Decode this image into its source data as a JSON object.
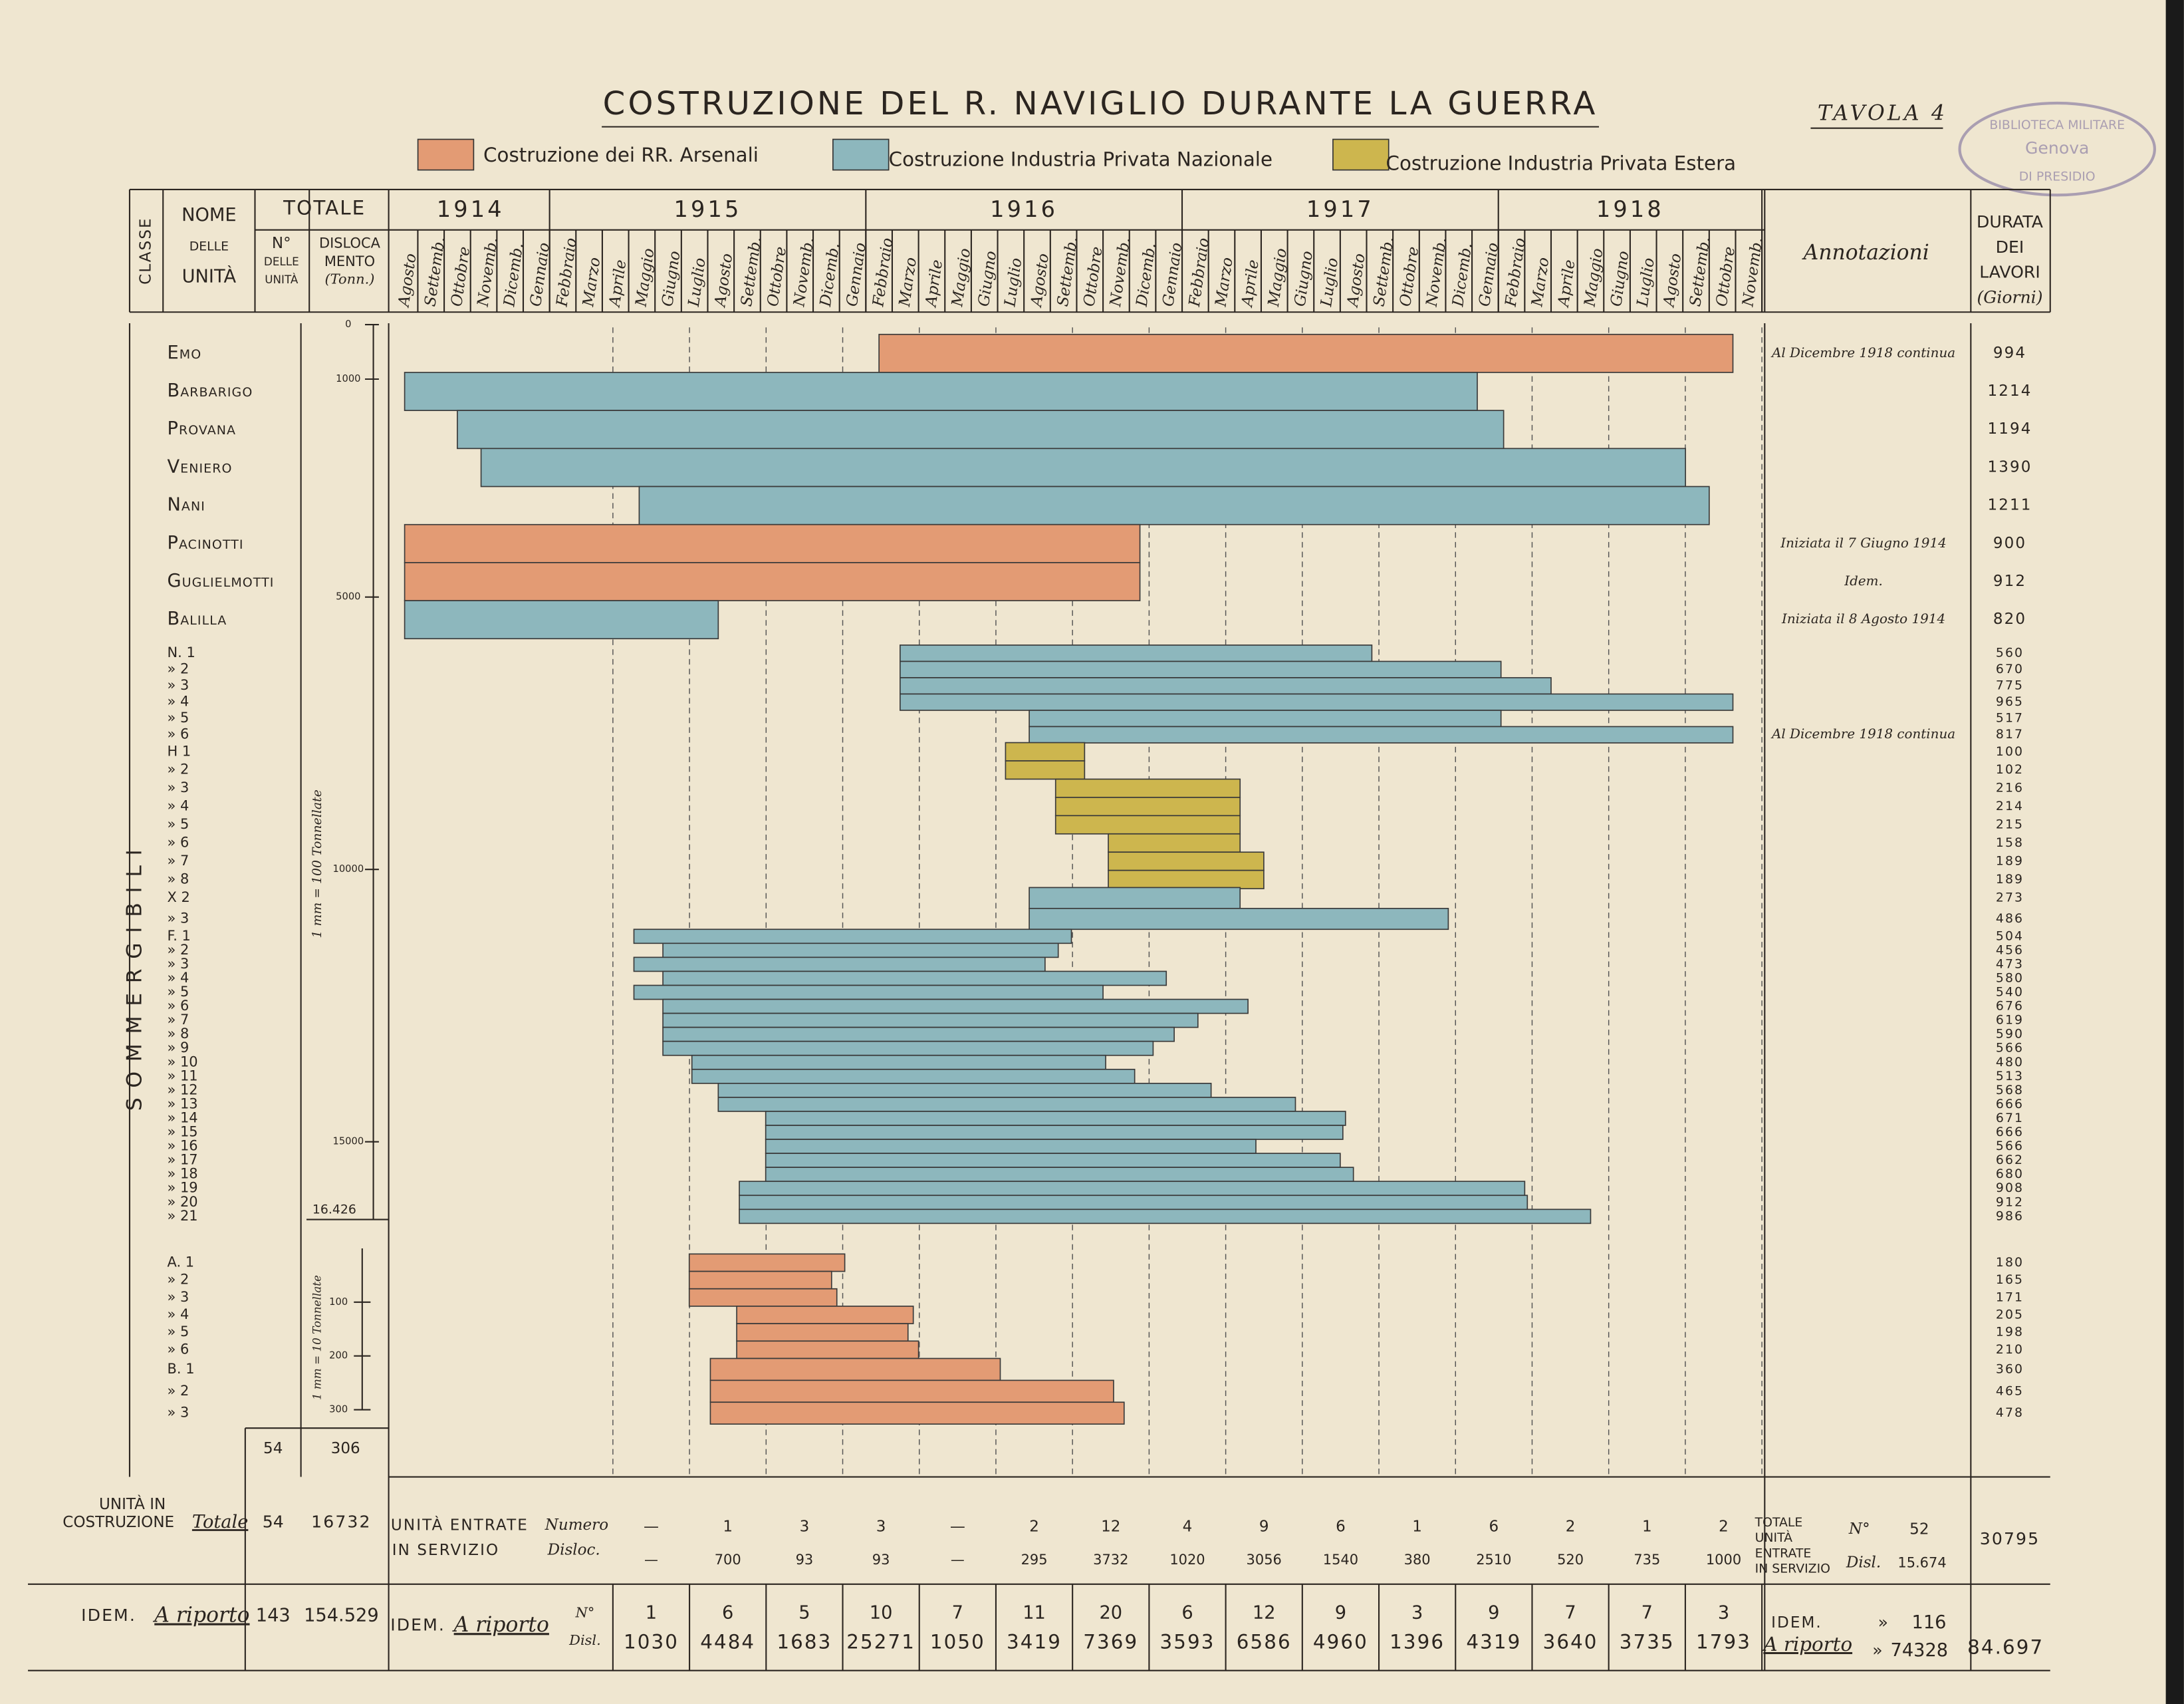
{
  "chart_data": {
    "type": "gantt",
    "title": "COSTRUZIONE DEL R. NAVIGLIO DURANTE LA GUERRA",
    "plate": "Tavola 4",
    "stamp": [
      "BIBLIOTECA MILITARE",
      "Genova",
      "DI PRESIDIO"
    ],
    "legend": [
      {
        "name": "Costruzione dei RR. Arsenali",
        "color": "#e39b74"
      },
      {
        "name": "Costruzione Industria Privata Nazionale",
        "color": "#8db7bd"
      },
      {
        "name": "Costruzione Industria Privata Estera",
        "color": "#cdb64e"
      }
    ],
    "headers": {
      "classe": "CLASSE",
      "nome": [
        "NOME",
        "DELLE",
        "UNITÀ"
      ],
      "totale": "TOTALE",
      "numero": [
        "N°",
        "DELLE",
        "UNITÀ"
      ],
      "disloc": [
        "DISLOCA",
        "MENTO",
        "(Tonn.)"
      ],
      "annotazioni": "Annotazioni",
      "durata": [
        "DURATA",
        "DEI",
        "LAVORI",
        "(Giorni)"
      ]
    },
    "years": [
      "1914",
      "1915",
      "1916",
      "1917",
      "1918"
    ],
    "months": [
      "Agosto",
      "Settemb.",
      "Ottobre",
      "Novemb.",
      "Dicemb.",
      "Gennaio",
      "Febbraio",
      "Marzo",
      "Aprile",
      "Maggio",
      "Giugno",
      "Luglio",
      "Agosto",
      "Settemb.",
      "Ottobre",
      "Novemb.",
      "Dicemb.",
      "Gennaio",
      "Febbraio",
      "Marzo",
      "Aprile",
      "Maggio",
      "Giugno",
      "Luglio",
      "Agosto",
      "Settemb.",
      "Ottobre",
      "Novemb.",
      "Dicemb.",
      "Gennaio",
      "Febbraio",
      "Marzo",
      "Aprile",
      "Maggio",
      "Giugno",
      "Luglio",
      "Agosto",
      "Settemb.",
      "Ottobre",
      "Novemb.",
      "Dicemb.",
      "Gennaio",
      "Febbraio",
      "Marzo",
      "Aprile",
      "Maggio",
      "Giugno",
      "Luglio",
      "Agosto",
      "Settemb.",
      "Ottobre",
      "Novemb."
    ],
    "xlim": [
      0,
      52
    ],
    "class_label": "SOMMERGIBILI",
    "rows": [
      {
        "label": "Emo",
        "color": "#e39b74",
        "start": 18.5,
        "end": 50.9,
        "duration": 994,
        "annotation": "Al Dicembre 1918 continua"
      },
      {
        "label": "Barbarigo",
        "color": "#8db7bd",
        "start": 0.5,
        "end": 41.2,
        "duration": 1214
      },
      {
        "label": "Provana",
        "color": "#8db7bd",
        "start": 2.5,
        "end": 42.2,
        "duration": 1194
      },
      {
        "label": "Veniero",
        "color": "#8db7bd",
        "start": 3.4,
        "end": 49.1,
        "duration": 1390
      },
      {
        "label": "Nani",
        "color": "#8db7bd",
        "start": 9.4,
        "end": 50.0,
        "duration": 1211
      },
      {
        "label": "Pacinotti",
        "color": "#e39b74",
        "start": 0.5,
        "end": 28.4,
        "duration": 900,
        "annotation": "Iniziata il 7 Giugno 1914"
      },
      {
        "label": "Guglielmotti",
        "color": "#e39b74",
        "start": 0.5,
        "end": 28.4,
        "duration": 912,
        "annotation": "Idem."
      },
      {
        "label": "Balilla",
        "color": "#8db7bd",
        "start": 0.5,
        "end": 12.4,
        "duration": 820,
        "annotation": "Iniziata il 8 Agosto 1914"
      },
      {
        "label": "N. 1",
        "color": "#8db7bd",
        "start": 19.3,
        "end": 37.2,
        "duration": 560
      },
      {
        "label": "» 2",
        "color": "#8db7bd",
        "start": 19.3,
        "end": 42.1,
        "duration": 670
      },
      {
        "label": "» 3",
        "color": "#8db7bd",
        "start": 19.3,
        "end": 44.0,
        "duration": 775
      },
      {
        "label": "» 4",
        "color": "#8db7bd",
        "start": 19.3,
        "end": 50.9,
        "duration": 965
      },
      {
        "label": "» 5",
        "color": "#8db7bd",
        "start": 24.2,
        "end": 42.1,
        "duration": 517
      },
      {
        "label": "» 6",
        "color": "#8db7bd",
        "start": 24.2,
        "end": 50.9,
        "duration": 817,
        "annotation": "Al Dicembre 1918 continua"
      },
      {
        "label": "H 1",
        "color": "#cdb64e",
        "start": 23.3,
        "end": 26.3,
        "duration": 100
      },
      {
        "label": "» 2",
        "color": "#cdb64e",
        "start": 23.3,
        "end": 26.3,
        "duration": 102
      },
      {
        "label": "» 3",
        "color": "#cdb64e",
        "start": 25.2,
        "end": 32.2,
        "duration": 216
      },
      {
        "label": "» 4",
        "color": "#cdb64e",
        "start": 25.2,
        "end": 32.2,
        "duration": 214
      },
      {
        "label": "» 5",
        "color": "#cdb64e",
        "start": 25.2,
        "end": 32.2,
        "duration": 215
      },
      {
        "label": "» 6",
        "color": "#cdb64e",
        "start": 27.2,
        "end": 32.2,
        "duration": 158
      },
      {
        "label": "» 7",
        "color": "#cdb64e",
        "start": 27.2,
        "end": 33.1,
        "duration": 189
      },
      {
        "label": "» 8",
        "color": "#cdb64e",
        "start": 27.2,
        "end": 33.1,
        "duration": 189
      },
      {
        "label": "X 2",
        "color": "#8db7bd",
        "start": 24.2,
        "end": 32.2,
        "duration": 273
      },
      {
        "label": "» 3",
        "color": "#8db7bd",
        "start": 24.2,
        "end": 40.1,
        "duration": 486
      },
      {
        "label": "F. 1",
        "color": "#8db7bd",
        "start": 9.2,
        "end": 25.8,
        "duration": 504
      },
      {
        "label": "» 2",
        "color": "#8db7bd",
        "start": 10.3,
        "end": 25.3,
        "duration": 456
      },
      {
        "label": "» 3",
        "color": "#8db7bd",
        "start": 9.2,
        "end": 24.8,
        "duration": 473
      },
      {
        "label": "» 4",
        "color": "#8db7bd",
        "start": 10.3,
        "end": 29.4,
        "duration": 580
      },
      {
        "label": "» 5",
        "color": "#8db7bd",
        "start": 9.2,
        "end": 27.0,
        "duration": 540
      },
      {
        "label": "» 6",
        "color": "#8db7bd",
        "start": 10.3,
        "end": 32.5,
        "duration": 676
      },
      {
        "label": "» 7",
        "color": "#8db7bd",
        "start": 10.3,
        "end": 30.6,
        "duration": 619
      },
      {
        "label": "» 8",
        "color": "#8db7bd",
        "start": 10.3,
        "end": 29.7,
        "duration": 590
      },
      {
        "label": "» 9",
        "color": "#8db7bd",
        "start": 10.3,
        "end": 28.9,
        "duration": 566
      },
      {
        "label": "» 10",
        "color": "#8db7bd",
        "start": 11.4,
        "end": 27.1,
        "duration": 480
      },
      {
        "label": "» 11",
        "color": "#8db7bd",
        "start": 11.4,
        "end": 28.2,
        "duration": 513
      },
      {
        "label": "» 12",
        "color": "#8db7bd",
        "start": 12.4,
        "end": 31.1,
        "duration": 568
      },
      {
        "label": "» 13",
        "color": "#8db7bd",
        "start": 12.4,
        "end": 34.3,
        "duration": 666
      },
      {
        "label": "» 14",
        "color": "#8db7bd",
        "start": 14.2,
        "end": 36.2,
        "duration": 671
      },
      {
        "label": "» 15",
        "color": "#8db7bd",
        "start": 14.2,
        "end": 36.1,
        "duration": 666
      },
      {
        "label": "» 16",
        "color": "#8db7bd",
        "start": 14.2,
        "end": 32.8,
        "duration": 566
      },
      {
        "label": "» 17",
        "color": "#8db7bd",
        "start": 14.2,
        "end": 36.0,
        "duration": 662
      },
      {
        "label": "» 18",
        "color": "#8db7bd",
        "start": 14.2,
        "end": 36.5,
        "duration": 680
      },
      {
        "label": "» 19",
        "color": "#8db7bd",
        "start": 13.2,
        "end": 43.0,
        "duration": 908
      },
      {
        "label": "» 20",
        "color": "#8db7bd",
        "start": 13.2,
        "end": 43.1,
        "duration": 912
      },
      {
        "label": "» 21",
        "color": "#8db7bd",
        "start": 13.2,
        "end": 45.5,
        "duration": 986
      },
      {
        "label": "A. 1",
        "color": "#e39b74",
        "start": 11.3,
        "end": 17.2,
        "duration": 180
      },
      {
        "label": "» 2",
        "color": "#e39b74",
        "start": 11.3,
        "end": 16.7,
        "duration": 165
      },
      {
        "label": "» 3",
        "color": "#e39b74",
        "start": 11.3,
        "end": 16.9,
        "duration": 171
      },
      {
        "label": "» 4",
        "color": "#e39b74",
        "start": 13.1,
        "end": 19.8,
        "duration": 205
      },
      {
        "label": "» 5",
        "color": "#e39b74",
        "start": 13.1,
        "end": 19.6,
        "duration": 198
      },
      {
        "label": "» 6",
        "color": "#e39b74",
        "start": 13.1,
        "end": 20.0,
        "duration": 210
      },
      {
        "label": "B. 1",
        "color": "#e39b74",
        "start": 12.1,
        "end": 23.1,
        "duration": 360
      },
      {
        "label": "» 2",
        "color": "#e39b74",
        "start": 12.1,
        "end": 27.4,
        "duration": 465
      },
      {
        "label": "» 3",
        "color": "#e39b74",
        "start": 12.1,
        "end": 27.8,
        "duration": 478
      }
    ],
    "disp_scale": {
      "ticks": [
        0,
        1000,
        5000,
        10000,
        15000
      ],
      "total": {
        "value": 16426,
        "label": "16.426"
      },
      "note": "1 mm = 100 Tonnellate"
    },
    "disp_scale2": {
      "ticks": [
        100,
        200,
        300
      ],
      "note": "1 mm = 10 Tonnellate"
    },
    "sub_totals": {
      "units": 54,
      "displacement": 306
    },
    "construction": {
      "label": [
        "UNITÀ IN",
        "COSTRUZIONE"
      ],
      "total_label": "Totale",
      "units": 54,
      "displacement": 16732
    },
    "service": {
      "label": [
        "UNITÀ ENTRATE",
        "IN SERVIZIO"
      ],
      "number_label": "Numero",
      "disloc_label": "Disloc.",
      "number": [
        "—",
        1,
        3,
        3,
        "—",
        2,
        12,
        4,
        9,
        6,
        1,
        6,
        2,
        1,
        2
      ],
      "disloc": [
        "—",
        700,
        93,
        93,
        "—",
        295,
        3732,
        1020,
        3056,
        1540,
        380,
        2510,
        520,
        735,
        1000
      ],
      "total_label": [
        "TOTALE",
        "UNITÀ",
        "ENTRATE",
        "IN SERVIZIO"
      ],
      "total_number_label": "N°",
      "total_number": 52,
      "total_disloc_label": "Disl.",
      "total_disloc": {
        "value": 15674,
        "label": "15.674"
      },
      "total_days": 30795
    },
    "carried": {
      "idem": "IDEM.",
      "riporto": "A riporto",
      "units": 143,
      "displacement": {
        "value": 154529,
        "label": "154.529"
      },
      "n_label": "N°",
      "d_label": "Disl.",
      "number": [
        1,
        6,
        5,
        10,
        7,
        11,
        20,
        6,
        12,
        9,
        3,
        9,
        7,
        7,
        3
      ],
      "disloc": [
        1030,
        4484,
        1683,
        25271,
        1050,
        3419,
        7369,
        3593,
        6586,
        4960,
        1396,
        4319,
        3640,
        3735,
        1793
      ],
      "ditto": "»",
      "total_number": 116,
      "total_disloc": 74328,
      "total_days": {
        "value": 84697,
        "label": "84.697"
      }
    }
  }
}
